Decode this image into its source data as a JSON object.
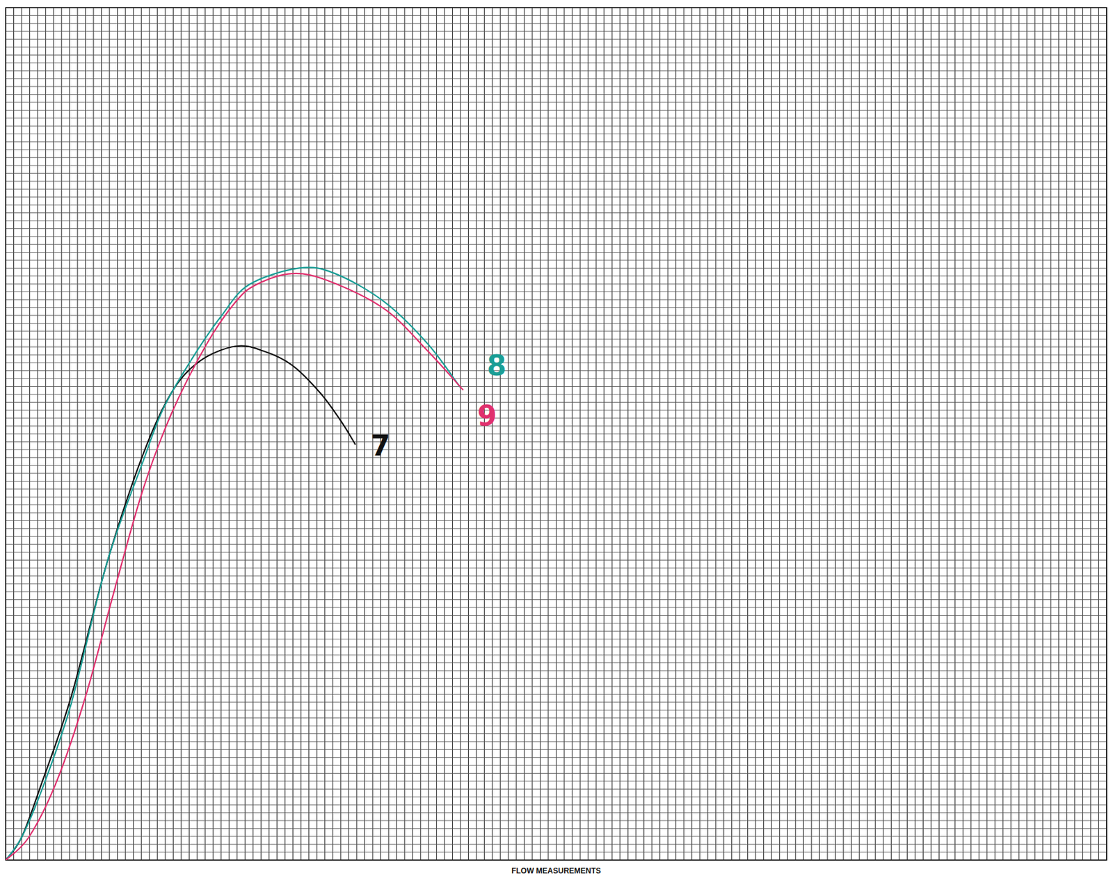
{
  "chart_data": {
    "type": "line",
    "x_label": "FLOW MEASUREMENTS",
    "tick_labels": false,
    "grid": true,
    "xlim": [
      0,
      138
    ],
    "ylim": [
      0,
      108
    ],
    "xticks": [
      0,
      1,
      2,
      3,
      4,
      5,
      6,
      7,
      8,
      9,
      10,
      11,
      12,
      13,
      14,
      15,
      16,
      17,
      18,
      19,
      20,
      21,
      22,
      23,
      24,
      25,
      26,
      27,
      28,
      29,
      30,
      31,
      32,
      33,
      34,
      35,
      36,
      37,
      38,
      39,
      40,
      41,
      42,
      43,
      44,
      45,
      46,
      47,
      48,
      49,
      50,
      51,
      52,
      53,
      54,
      55,
      56,
      57,
      58,
      59,
      60,
      61,
      62,
      63,
      64,
      65,
      66,
      67,
      68,
      69,
      70,
      71,
      72,
      73,
      74,
      75,
      76,
      77,
      78,
      79,
      80,
      81,
      82,
      83,
      84,
      85,
      86,
      87,
      88,
      89,
      90,
      91,
      92,
      93,
      94,
      95,
      96,
      97,
      98,
      99,
      100,
      101,
      102,
      103,
      104,
      105,
      106,
      107,
      108,
      109,
      110,
      111,
      112,
      113,
      114,
      115,
      116,
      117,
      118,
      119,
      120,
      121,
      122,
      123,
      124,
      125,
      126,
      127,
      128,
      129,
      130,
      131,
      132,
      133,
      134,
      135,
      136,
      137,
      138
    ],
    "yticks": [
      0,
      1,
      2,
      3,
      4,
      5,
      6,
      7,
      8,
      9,
      10,
      11,
      12,
      13,
      14,
      15,
      16,
      17,
      18,
      19,
      20,
      21,
      22,
      23,
      24,
      25,
      26,
      27,
      28,
      29,
      30,
      31,
      32,
      33,
      34,
      35,
      36,
      37,
      38,
      39,
      40,
      41,
      42,
      43,
      44,
      45,
      46,
      47,
      48,
      49,
      50,
      51,
      52,
      53,
      54,
      55,
      56,
      57,
      58,
      59,
      60,
      61,
      62,
      63,
      64,
      65,
      66,
      67,
      68,
      69,
      70,
      71,
      72,
      73,
      74,
      75,
      76,
      77,
      78,
      79,
      80,
      81,
      82,
      83,
      84,
      85,
      86,
      87,
      88,
      89,
      90,
      91,
      92,
      93,
      94,
      95,
      96,
      97,
      98,
      99,
      100,
      101,
      102,
      103,
      104,
      105,
      106,
      107,
      108
    ],
    "series": [
      {
        "name": "7",
        "color": "#111111",
        "x": [
          0,
          2.0,
          4.6,
          8.2,
          12.7,
          17.1,
          20.7,
          24.3,
          28.8,
          32.3,
          35.9,
          39.5,
          42.1,
          43.8
        ],
        "values": [
          0,
          2.9,
          10.0,
          20.7,
          37.7,
          51.1,
          59.1,
          63.2,
          65.1,
          64.5,
          62.7,
          59.1,
          55.5,
          52.7
        ]
      },
      {
        "name": "8",
        "color": "#1a9e96",
        "x": [
          0,
          2.0,
          4.6,
          8.2,
          12.7,
          17.1,
          19.8,
          23.4,
          27.0,
          30.5,
          36.8,
          41.3,
          47.5,
          52.9,
          56.9
        ],
        "values": [
          0,
          2.9,
          9.1,
          19.8,
          37.7,
          50.2,
          57.3,
          63.6,
          68.9,
          72.9,
          75.0,
          74.3,
          70.7,
          65.4,
          60.0
        ]
      },
      {
        "name": "9",
        "color": "#e0306e",
        "x": [
          0,
          2.9,
          6.4,
          10.0,
          13.6,
          17.1,
          20.7,
          25.2,
          28.8,
          31.4,
          35.9,
          40.4,
          47.5,
          52.9,
          57.3
        ],
        "values": [
          0,
          2.9,
          10.0,
          20.7,
          34.1,
          46.6,
          56.4,
          65.4,
          70.7,
          72.9,
          74.3,
          73.4,
          69.8,
          64.5,
          59.6
        ]
      }
    ]
  }
}
